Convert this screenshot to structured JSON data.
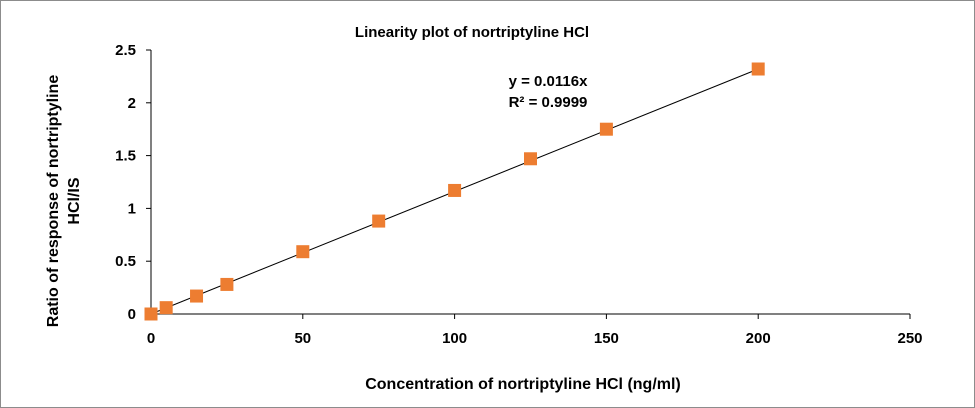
{
  "chart_data": {
    "type": "scatter",
    "title": "Linearity plot of nortriptyline HCl",
    "xlabel": "Concentration of nortriptyline HCl (ng/ml)",
    "ylabel_line1": "Ratio of response of nortriptyline",
    "ylabel_line2": "HCl/IS",
    "xlim": [
      0,
      250
    ],
    "ylim": [
      0,
      2.5
    ],
    "x_ticks": [
      "0",
      "50",
      "100",
      "150",
      "200",
      "250"
    ],
    "y_ticks": [
      "0",
      "0.5",
      "1",
      "1.5",
      "2",
      "2.5"
    ],
    "grid": false,
    "legend": "none",
    "series": [
      {
        "x": [
          0,
          5,
          15,
          25,
          50,
          75,
          100,
          125,
          150,
          200
        ],
        "y": [
          0.0,
          0.06,
          0.17,
          0.28,
          0.59,
          0.88,
          1.17,
          1.47,
          1.75,
          2.32
        ],
        "color": "#ED7D31",
        "marker": "square"
      }
    ],
    "trendline": {
      "slope": 0.0116,
      "intercept": 0,
      "x_range": [
        0,
        200
      ],
      "color": "#000000"
    },
    "annotations": [
      "y = 0.0116x",
      "R² = 0.9999"
    ]
  }
}
